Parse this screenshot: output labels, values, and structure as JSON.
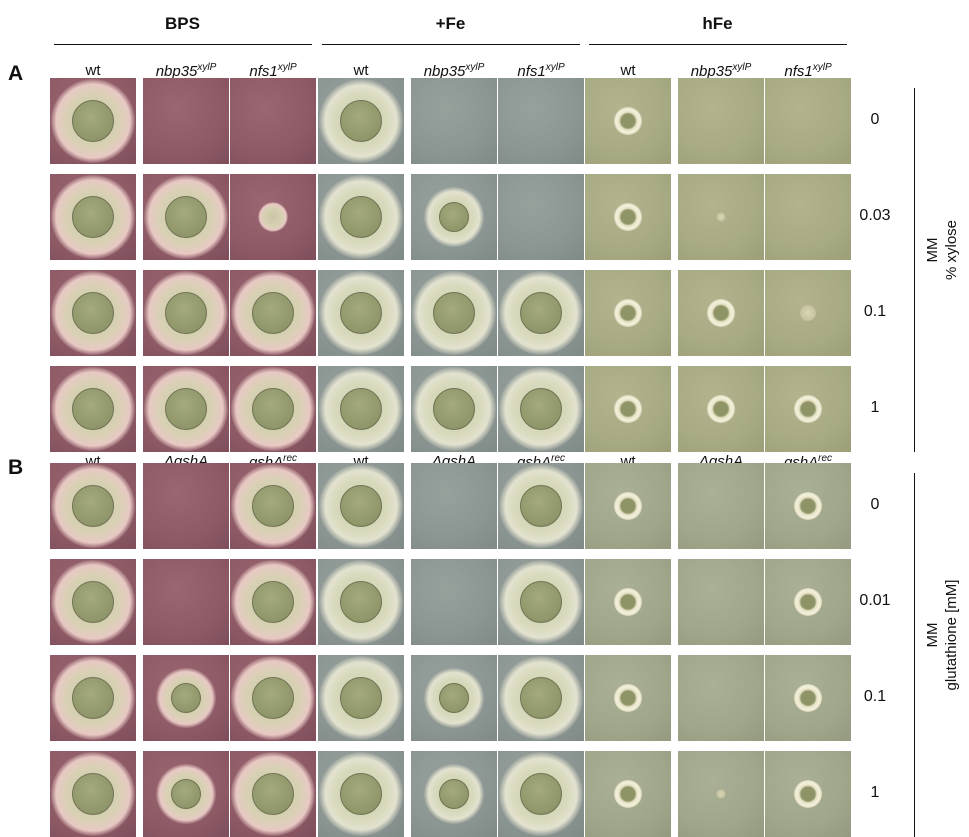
{
  "conditions": [
    "BPS",
    "+Fe",
    "hFe"
  ],
  "panels": [
    {
      "letter": "A",
      "columns": [
        {
          "name": "wt",
          "sup": ""
        },
        {
          "name": "nbp35",
          "sup": "xylP"
        },
        {
          "name": "nfs1",
          "sup": "xylP"
        }
      ],
      "row_values": [
        "0",
        "0.03",
        "0.1",
        "1"
      ],
      "side_label_line1": "MM",
      "side_label_line2": "% xylose",
      "growth": {
        "BPS": [
          [
            3,
            0,
            0
          ],
          [
            3,
            3,
            1
          ],
          [
            3,
            3,
            3
          ],
          [
            3,
            3,
            3
          ]
        ],
        "+Fe": [
          [
            3,
            0,
            0
          ],
          [
            3,
            2,
            0
          ],
          [
            3,
            3,
            3
          ],
          [
            3,
            3,
            3
          ]
        ],
        "hFe": [
          [
            2,
            0,
            0
          ],
          [
            2,
            1,
            0
          ],
          [
            2,
            2,
            1
          ],
          [
            2,
            2,
            2
          ]
        ]
      }
    },
    {
      "letter": "B",
      "columns": [
        {
          "name": "wt",
          "sup": ""
        },
        {
          "name": "ΔgshA",
          "sup": ""
        },
        {
          "name": "gshA",
          "sup": "rec"
        }
      ],
      "row_values": [
        "0",
        "0.01",
        "0.1",
        "1"
      ],
      "side_label_line1": "MM",
      "side_label_line2": "glutathione [mM]",
      "growth": {
        "BPS": [
          [
            3,
            0,
            3
          ],
          [
            3,
            0,
            3
          ],
          [
            3,
            2,
            3
          ],
          [
            3,
            2,
            3
          ]
        ],
        "+Fe": [
          [
            3,
            0,
            3
          ],
          [
            3,
            0,
            3
          ],
          [
            3,
            2,
            3
          ],
          [
            3,
            2,
            3
          ]
        ],
        "hFe": [
          [
            2,
            0,
            2
          ],
          [
            2,
            0,
            2
          ],
          [
            2,
            0,
            2
          ],
          [
            2,
            1,
            2
          ]
        ]
      }
    }
  ]
}
